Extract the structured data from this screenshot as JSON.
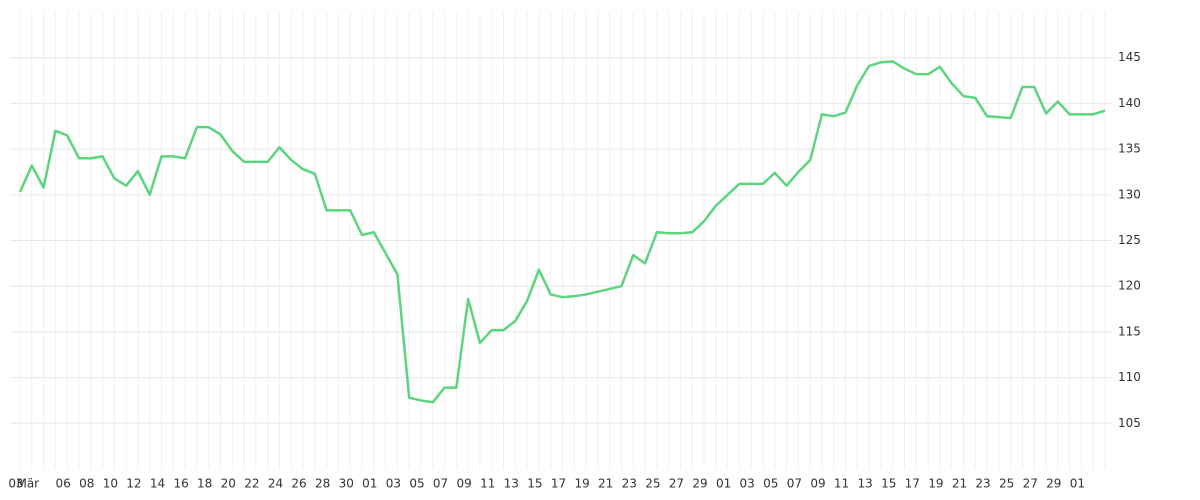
{
  "chart_data": {
    "type": "line",
    "categories": [
      "03",
      "Mär",
      null,
      null,
      "06",
      null,
      "08",
      null,
      "10",
      null,
      "12",
      null,
      "14",
      null,
      "16",
      null,
      "18",
      null,
      "20",
      null,
      "22",
      null,
      "24",
      null,
      "26",
      null,
      "28",
      null,
      "30",
      null,
      "01",
      null,
      "03",
      null,
      "05",
      null,
      "07",
      null,
      "09",
      null,
      "11",
      null,
      "13",
      null,
      "15",
      null,
      "17",
      null,
      "19",
      null,
      "21",
      null,
      "23",
      null,
      "25",
      null,
      "27",
      null,
      "29",
      null,
      "01",
      null,
      "03",
      null,
      "05",
      null,
      "07",
      null,
      "09",
      null,
      "11",
      null,
      "13",
      null,
      "15",
      null,
      "17",
      null,
      "19",
      null,
      "21",
      null,
      "23",
      null,
      "25",
      null,
      "27",
      null,
      "29",
      null,
      "01",
      null,
      null
    ],
    "series": [
      {
        "color": "#5dd47e",
        "values": [
          130.3,
          133.2,
          130.8,
          137.0,
          136.5,
          134.0,
          134.0,
          134.2,
          131.8,
          131.0,
          132.6,
          130.0,
          134.2,
          134.2,
          134.0,
          137.4,
          137.4,
          136.6,
          134.8,
          133.6,
          133.6,
          133.6,
          135.2,
          133.8,
          132.8,
          132.3,
          128.3,
          128.3,
          128.3,
          125.6,
          125.9,
          123.6,
          121.3,
          107.8,
          107.5,
          107.3,
          108.9,
          108.9,
          118.6,
          113.8,
          115.2,
          115.2,
          116.2,
          118.4,
          121.8,
          119.1,
          118.8,
          118.9,
          119.1,
          119.4,
          119.7,
          120.0,
          123.4,
          122.5,
          125.9,
          125.8,
          125.8,
          125.9,
          127.1,
          128.8,
          130.0,
          131.2,
          131.2,
          131.2,
          132.4,
          131.0,
          132.5,
          133.8,
          138.8,
          138.6,
          139.0,
          142.0,
          144.1,
          144.5,
          144.6,
          143.8,
          143.2,
          143.2,
          144.0,
          142.2,
          140.8,
          140.6,
          138.6,
          138.5,
          138.4,
          141.8,
          141.8,
          138.9,
          140.2,
          138.8,
          138.8,
          138.8,
          139.2
        ]
      }
    ],
    "ylim": [
      100,
      150
    ],
    "yticks": [
      105,
      110,
      115,
      120,
      125,
      130,
      135,
      140,
      145
    ],
    "grid": true
  }
}
